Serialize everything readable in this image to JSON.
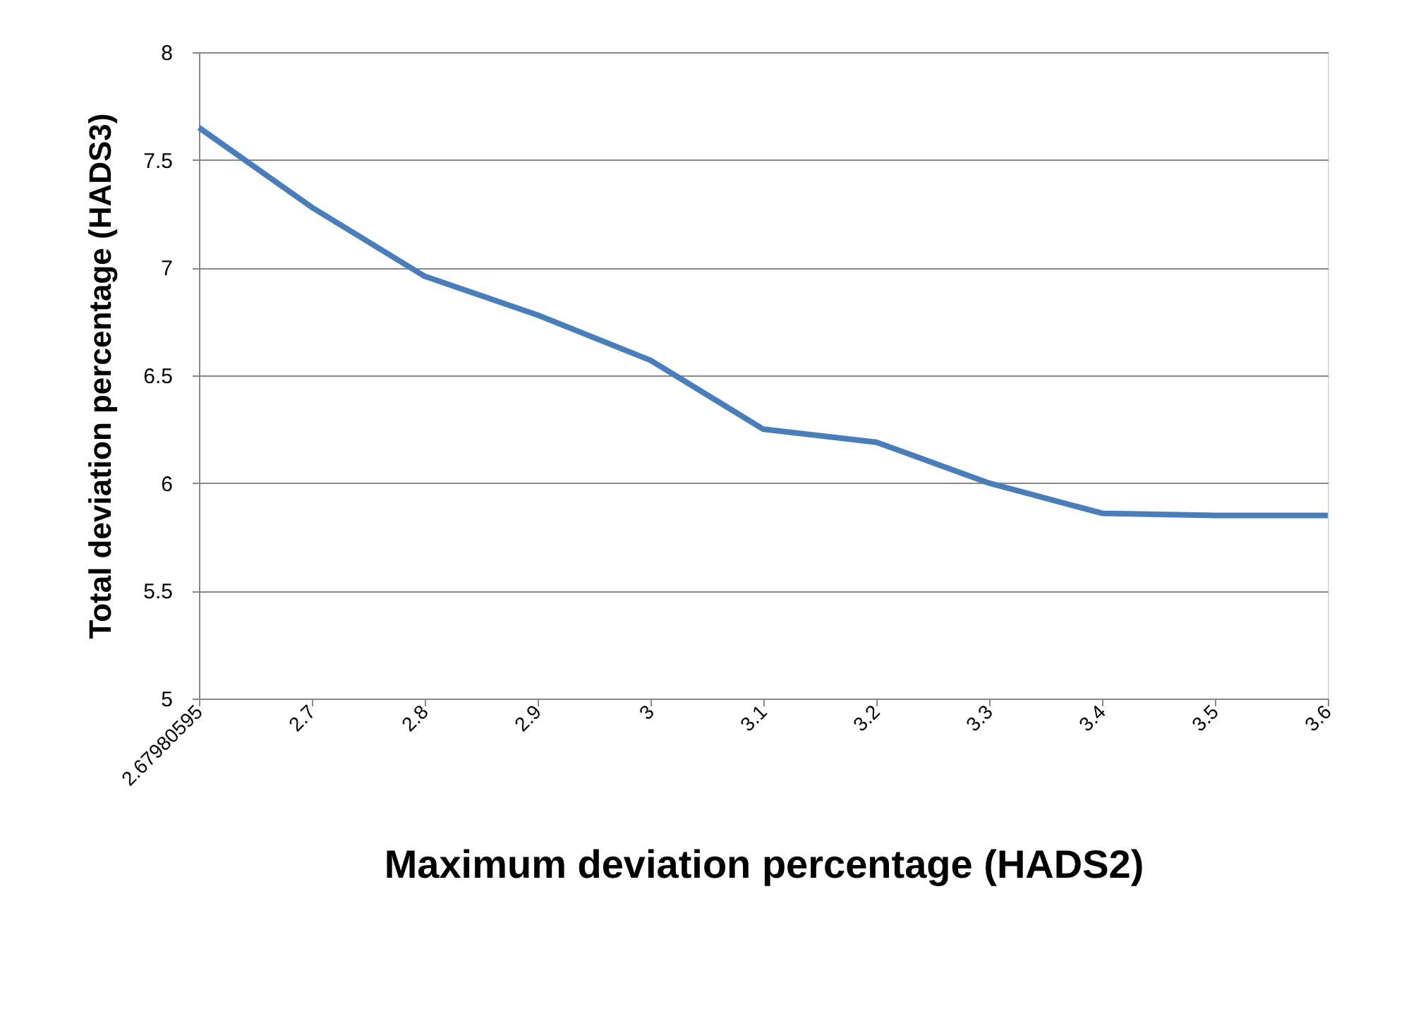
{
  "chart_data": {
    "type": "line",
    "xlabel": "Maximum deviation percentage (HADS2)",
    "ylabel": "Total deviation percentage (HADS3)",
    "categories": [
      "2.67980595",
      "2.7",
      "2.8",
      "2.9",
      "3",
      "3.1",
      "3.2",
      "3.3",
      "3.4",
      "3.5",
      "3.6"
    ],
    "series": [
      {
        "color": "#4a7ebb",
        "values": [
          7.65,
          7.28,
          6.96,
          6.78,
          6.57,
          6.25,
          6.19,
          6.0,
          5.86,
          5.85,
          5.85
        ]
      }
    ],
    "ylim": [
      5,
      8
    ],
    "yticks": [
      5,
      5.5,
      6,
      6.5,
      7,
      7.5,
      8
    ],
    "grid": "y",
    "marker": "none",
    "line_style": "solid"
  }
}
